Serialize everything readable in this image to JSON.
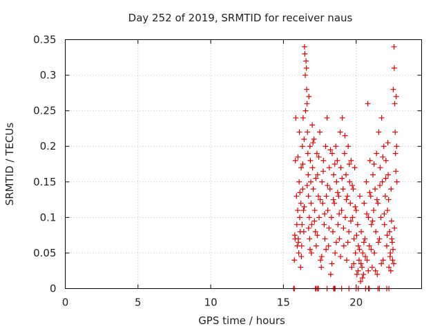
{
  "chart_data": {
    "type": "scatter",
    "title": "Day 252 of 2019, SRMTID for receiver naus",
    "xlabel": "GPS time / hours",
    "ylabel": "SRMTID / TECUs",
    "xlim": [
      0,
      24.5
    ],
    "ylim": [
      0,
      0.35
    ],
    "x_ticks": [
      0,
      5,
      10,
      15,
      20
    ],
    "x_tick_labels": [
      "0",
      "5",
      "10",
      "15",
      "20"
    ],
    "y_ticks": [
      0,
      0.05,
      0.1,
      0.15,
      0.2,
      0.25,
      0.3,
      0.35
    ],
    "y_tick_labels": [
      "0",
      "0.05",
      "0.1",
      "0.15",
      "0.2",
      "0.25",
      "0.3",
      "0.35"
    ],
    "grid": true,
    "marker": "+",
    "color": "#dd0000",
    "series": [
      {
        "name": "SRMTID",
        "points": [
          [
            15.75,
            0.04
          ],
          [
            15.8,
            0.07
          ],
          [
            15.82,
            0.18
          ],
          [
            15.85,
            0.24
          ],
          [
            15.9,
            0.13
          ],
          [
            15.92,
            0.09
          ],
          [
            15.95,
            0.06
          ],
          [
            15.98,
            0.11
          ],
          [
            16.0,
            0.185
          ],
          [
            16.02,
            0.07
          ],
          [
            16.05,
            0.05
          ],
          [
            16.08,
            0.15
          ],
          [
            16.1,
            0.22
          ],
          [
            16.12,
            0.1
          ],
          [
            16.15,
            0.08
          ],
          [
            16.18,
            0.03
          ],
          [
            16.2,
            0.12
          ],
          [
            16.22,
            0.17
          ],
          [
            16.25,
            0.06
          ],
          [
            16.28,
            0.09
          ],
          [
            16.3,
            0.2
          ],
          [
            16.32,
            0.14
          ],
          [
            16.35,
            0.24
          ],
          [
            16.38,
            0.11
          ],
          [
            16.4,
            0.08
          ],
          [
            16.42,
            0.21
          ],
          [
            16.45,
            0.34
          ],
          [
            16.47,
            0.33
          ],
          [
            16.5,
            0.3
          ],
          [
            16.52,
            0.25
          ],
          [
            16.55,
            0.32
          ],
          [
            16.58,
            0.31
          ],
          [
            16.6,
            0.28
          ],
          [
            16.62,
            0.26
          ],
          [
            16.65,
            0.22
          ],
          [
            16.68,
            0.19
          ],
          [
            16.7,
            0.16
          ],
          [
            16.72,
            0.13
          ],
          [
            16.75,
            0.27
          ],
          [
            16.78,
            0.1
          ],
          [
            16.8,
            0.07
          ],
          [
            16.82,
            0.2
          ],
          [
            16.85,
            0.18
          ],
          [
            16.88,
            0.15
          ],
          [
            16.9,
            0.12
          ],
          [
            16.92,
            0.05
          ],
          [
            16.95,
            0.09
          ],
          [
            16.98,
            0.23
          ],
          [
            17.0,
            0.17
          ],
          [
            17.05,
            0.14
          ],
          [
            17.1,
            0.21
          ],
          [
            17.15,
            0.11
          ],
          [
            17.2,
            0.08
          ],
          [
            17.25,
            0.06
          ],
          [
            17.3,
            0.19
          ],
          [
            17.35,
            0.16
          ],
          [
            17.4,
            0.13
          ],
          [
            17.45,
            0.1
          ],
          [
            17.5,
            0.22
          ],
          [
            17.55,
            0.04
          ],
          [
            17.6,
            0.03
          ],
          [
            17.65,
            0.15
          ],
          [
            17.7,
            0.12
          ],
          [
            17.75,
            0.18
          ],
          [
            17.8,
            0.09
          ],
          [
            17.85,
            0.07
          ],
          [
            17.9,
            0.2
          ],
          [
            17.95,
            0.13
          ],
          [
            18.0,
            0.24
          ],
          [
            18.05,
            0.11
          ],
          [
            18.1,
            0.06
          ],
          [
            18.15,
            0.17
          ],
          [
            18.2,
            0.14
          ],
          [
            18.25,
            0.02
          ],
          [
            18.3,
            0.1
          ],
          [
            18.35,
            0.19
          ],
          [
            18.4,
            0.08
          ],
          [
            18.45,
            0.16
          ],
          [
            18.5,
            0.12
          ],
          [
            18.55,
            0.05
          ],
          [
            18.6,
            0.2
          ],
          [
            18.65,
            0.15
          ],
          [
            18.7,
            0.18
          ],
          [
            18.75,
            0.09
          ],
          [
            18.8,
            0.13
          ],
          [
            18.85,
            0.07
          ],
          [
            18.9,
            0.22
          ],
          [
            18.95,
            0.17
          ],
          [
            19.0,
            0.11
          ],
          [
            19.05,
            0.24
          ],
          [
            19.1,
            0.14
          ],
          [
            19.15,
            0.06
          ],
          [
            19.2,
            0.19
          ],
          [
            19.25,
            0.1
          ],
          [
            19.3,
            0.16
          ],
          [
            19.35,
            0.04
          ],
          [
            19.4,
            0.13
          ],
          [
            19.45,
            0.2
          ],
          [
            19.5,
            0.08
          ],
          [
            19.55,
            0.15
          ],
          [
            19.6,
            0.12
          ],
          [
            19.65,
            0.18
          ],
          [
            19.7,
            0.03
          ],
          [
            19.75,
            0.1
          ],
          [
            19.8,
            0.14
          ],
          [
            19.85,
            0.07
          ],
          [
            19.9,
            0.17
          ],
          [
            19.95,
            0.05
          ],
          [
            20.0,
            0.11
          ],
          [
            20.05,
            0.02
          ],
          [
            20.1,
            0.09
          ],
          [
            20.15,
            0.06
          ],
          [
            20.2,
            0.04
          ],
          [
            20.25,
            0.13
          ],
          [
            20.3,
            0.01
          ],
          [
            20.35,
            0.08
          ],
          [
            20.4,
            0.03
          ],
          [
            20.45,
            0.05
          ],
          [
            20.5,
            0.02
          ],
          [
            20.55,
            0.12
          ],
          [
            20.6,
            0.07
          ],
          [
            20.65,
            0.0
          ],
          [
            20.7,
            0.15
          ],
          [
            20.75,
            0.04
          ],
          [
            20.8,
            0.26
          ],
          [
            20.85,
            0.1
          ],
          [
            20.9,
            0.06
          ],
          [
            20.95,
            0.18
          ],
          [
            21.0,
            0.13
          ],
          [
            21.05,
            0.09
          ],
          [
            21.1,
            0.03
          ],
          [
            21.15,
            0.16
          ],
          [
            21.2,
            0.11
          ],
          [
            21.25,
            0.05
          ],
          [
            21.3,
            0.14
          ],
          [
            21.35,
            0.08
          ],
          [
            21.4,
            0.19
          ],
          [
            21.45,
            0.02
          ],
          [
            21.5,
            0.12
          ],
          [
            21.55,
            0.22
          ],
          [
            21.6,
            0.07
          ],
          [
            21.65,
            0.17
          ],
          [
            21.7,
            0.1
          ],
          [
            21.75,
            0.24
          ],
          [
            21.8,
            0.15
          ],
          [
            21.85,
            0.04
          ],
          [
            21.9,
            0.2
          ],
          [
            21.95,
            0.09
          ],
          [
            22.0,
            0.13
          ],
          [
            22.05,
            0.18
          ],
          [
            22.1,
            0.06
          ],
          [
            22.15,
            0.11
          ],
          [
            22.2,
            0.16
          ],
          [
            22.25,
            0.03
          ],
          [
            22.3,
            0.08
          ],
          [
            22.35,
            0.05
          ],
          [
            22.4,
            0.14
          ],
          [
            22.45,
            0.07
          ],
          [
            22.5,
            0.04
          ],
          [
            22.55,
            0.28
          ],
          [
            22.6,
            0.34
          ],
          [
            22.62,
            0.31
          ],
          [
            22.65,
            0.26
          ],
          [
            22.68,
            0.22
          ],
          [
            22.7,
            0.19
          ],
          [
            22.75,
            0.27
          ],
          [
            22.8,
            0.15
          ],
          [
            15.78,
            0.075
          ],
          [
            16.03,
            0.065
          ],
          [
            16.13,
            0.135
          ],
          [
            16.23,
            0.045
          ],
          [
            16.33,
            0.175
          ],
          [
            16.43,
            0.115
          ],
          [
            16.63,
            0.145
          ],
          [
            16.73,
            0.085
          ],
          [
            16.83,
            0.055
          ],
          [
            17.03,
            0.205
          ],
          [
            17.13,
            0.095
          ],
          [
            17.23,
            0.155
          ],
          [
            17.33,
            0.075
          ],
          [
            17.43,
            0.185
          ],
          [
            17.53,
            0.125
          ],
          [
            17.63,
            0.045
          ],
          [
            17.73,
            0.165
          ],
          [
            17.83,
            0.105
          ],
          [
            17.93,
            0.055
          ],
          [
            18.03,
            0.145
          ],
          [
            18.13,
            0.085
          ],
          [
            18.23,
            0.195
          ],
          [
            18.33,
            0.035
          ],
          [
            18.43,
            0.125
          ],
          [
            18.53,
            0.175
          ],
          [
            18.63,
            0.065
          ],
          [
            18.73,
            0.135
          ],
          [
            18.83,
            0.105
          ],
          [
            18.93,
            0.045
          ],
          [
            19.03,
            0.155
          ],
          [
            19.13,
            0.085
          ],
          [
            19.23,
            0.215
          ],
          [
            19.33,
            0.125
          ],
          [
            19.43,
            0.065
          ],
          [
            19.53,
            0.175
          ],
          [
            19.63,
            0.095
          ],
          [
            19.73,
            0.145
          ],
          [
            19.83,
            0.035
          ],
          [
            19.93,
            0.115
          ],
          [
            20.03,
            0.075
          ],
          [
            20.13,
            0.025
          ],
          [
            20.23,
            0.055
          ],
          [
            20.33,
            0.035
          ],
          [
            20.43,
            0.015
          ],
          [
            20.53,
            0.065
          ],
          [
            20.63,
            0.045
          ],
          [
            20.73,
            0.105
          ],
          [
            20.83,
            0.025
          ],
          [
            20.93,
            0.135
          ],
          [
            21.03,
            0.055
          ],
          [
            21.13,
            0.095
          ],
          [
            21.23,
            0.175
          ],
          [
            21.33,
            0.025
          ],
          [
            21.43,
            0.125
          ],
          [
            21.53,
            0.065
          ],
          [
            21.63,
            0.145
          ],
          [
            21.73,
            0.035
          ],
          [
            21.83,
            0.185
          ],
          [
            21.93,
            0.105
          ],
          [
            22.03,
            0.155
          ],
          [
            22.13,
            0.075
          ],
          [
            22.23,
            0.125
          ],
          [
            22.33,
            0.045
          ],
          [
            22.43,
            0.095
          ],
          [
            22.53,
            0.055
          ],
          [
            22.63,
            0.085
          ],
          [
            22.73,
            0.165
          ],
          [
            22.78,
            0.2
          ],
          [
            22.58,
            0.035
          ],
          [
            22.48,
            0.065
          ],
          [
            22.38,
            0.025
          ],
          [
            22.18,
            0.205
          ],
          [
            17.2,
            0.0
          ],
          [
            17.4,
            0.0
          ],
          [
            18.0,
            0.0
          ],
          [
            18.5,
            0.0
          ],
          [
            19.0,
            0.0
          ],
          [
            19.5,
            0.0
          ],
          [
            20.0,
            0.0
          ],
          [
            20.9,
            0.0
          ],
          [
            21.5,
            0.0
          ],
          [
            22.1,
            0.0
          ],
          [
            15.7,
            0.0
          ],
          [
            15.75,
            0.0
          ],
          [
            17.25,
            0.0
          ],
          [
            17.35,
            0.0
          ],
          [
            18.45,
            0.0
          ],
          [
            18.55,
            0.0
          ],
          [
            20.15,
            0.0
          ],
          [
            20.85,
            0.0
          ],
          [
            21.6,
            0.0
          ],
          [
            22.25,
            0.0
          ]
        ]
      }
    ]
  }
}
